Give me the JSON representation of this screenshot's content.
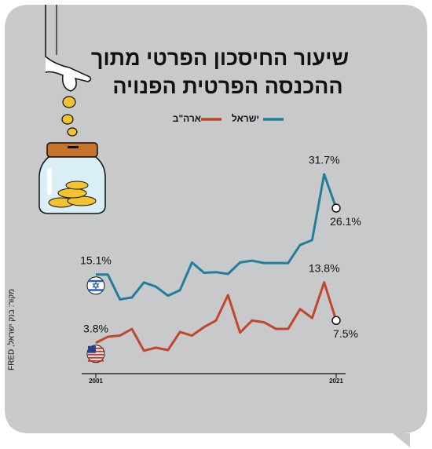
{
  "chart_data": {
    "type": "line",
    "title": "שיעור החיסכון הפרטי מתוך",
    "subtitle": "ההכנסה הפרטית הפנויה",
    "source": "מקור: בנק ישראל, FRED",
    "x": [
      2001,
      2002,
      2003,
      2004,
      2005,
      2006,
      2007,
      2008,
      2009,
      2010,
      2011,
      2012,
      2013,
      2014,
      2015,
      2016,
      2017,
      2018,
      2019,
      2020,
      2021
    ],
    "xlim": [
      2001,
      2021
    ],
    "xticks": [
      2001,
      2021
    ],
    "ylim": [
      0,
      33
    ],
    "series": [
      {
        "name": "ישראל",
        "color": "#1f7f9b",
        "values": [
          15.1,
          15.1,
          11.0,
          11.3,
          13.8,
          13.1,
          11.6,
          12.5,
          17.1,
          15.4,
          15.5,
          15.2,
          17.1,
          17.4,
          17.0,
          17.0,
          17.0,
          20.0,
          20.8,
          31.7,
          26.1
        ],
        "value_labels": [
          "15.1%",
          null,
          null,
          null,
          null,
          null,
          null,
          null,
          null,
          null,
          null,
          null,
          null,
          null,
          null,
          null,
          null,
          null,
          null,
          "31.7%",
          "26.1%"
        ]
      },
      {
        "name": "ארה\"ב",
        "color": "#c0462c",
        "values": [
          3.8,
          4.8,
          5.0,
          6.1,
          2.5,
          3.0,
          2.6,
          5.6,
          5.0,
          6.4,
          7.5,
          11.7,
          5.5,
          7.5,
          7.2,
          6.1,
          6.1,
          9.4,
          7.9,
          13.8,
          7.5
        ],
        "value_labels": [
          "3.8%",
          null,
          null,
          null,
          null,
          null,
          null,
          null,
          null,
          null,
          null,
          null,
          null,
          null,
          null,
          null,
          null,
          null,
          null,
          "13.8%",
          "7.5%"
        ]
      }
    ]
  }
}
